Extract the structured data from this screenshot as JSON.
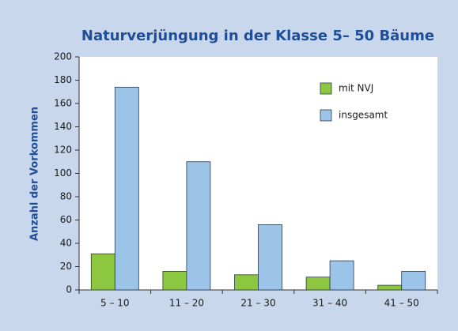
{
  "chart_data": {
    "type": "bar",
    "title": "Naturverjüngung in der Klasse 5– 50 Bäume",
    "y_label": "Anzahl der Vorkommen",
    "categories": [
      "5 – 10",
      "11 – 20",
      "21 – 30",
      "31 – 40",
      "41 – 50"
    ],
    "series": [
      {
        "name": "mit NVJ",
        "color": "#8dc63f",
        "values": [
          31,
          16,
          13,
          11,
          4
        ]
      },
      {
        "name": "insgesamt",
        "color": "#9cc4e8",
        "values": [
          174,
          110,
          56,
          25,
          16
        ]
      }
    ],
    "ylim": [
      0,
      200
    ],
    "yticks": [
      0,
      20,
      40,
      60,
      80,
      100,
      120,
      140,
      160,
      180,
      200
    ],
    "grid": false,
    "legend": "upper right"
  }
}
